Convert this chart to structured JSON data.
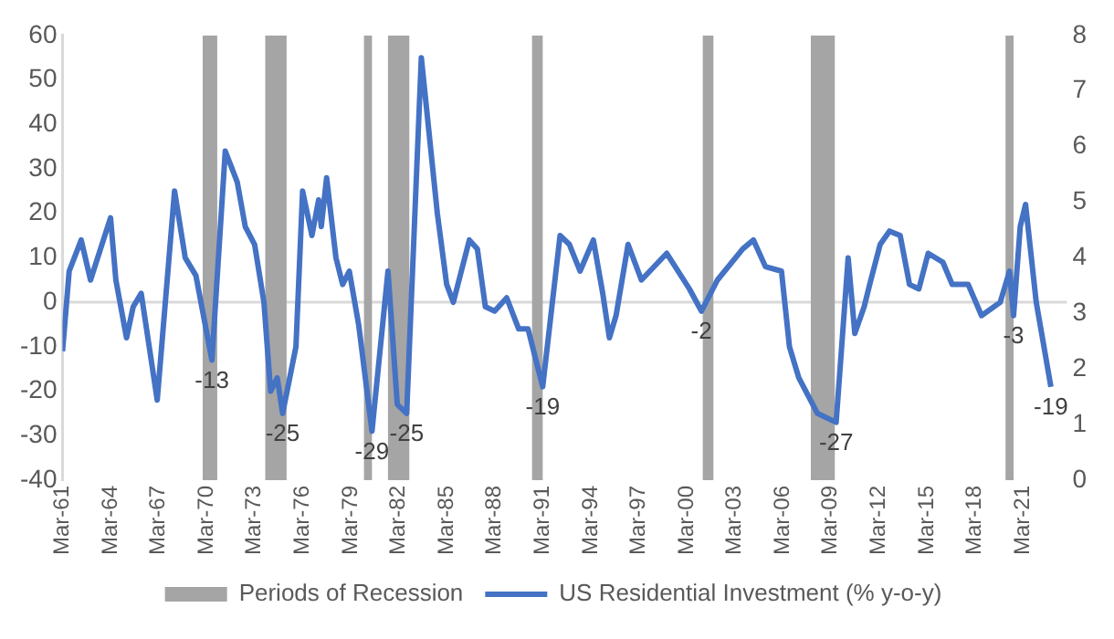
{
  "chart_data": {
    "type": "line",
    "xlim": [
      "1961-03",
      "2023-12"
    ],
    "xticks": [
      {
        "value": "1961-03",
        "label": "Mar-61"
      },
      {
        "value": "1964-03",
        "label": "Mar-64"
      },
      {
        "value": "1967-03",
        "label": "Mar-67"
      },
      {
        "value": "1970-03",
        "label": "Mar-70"
      },
      {
        "value": "1973-03",
        "label": "Mar-73"
      },
      {
        "value": "1976-03",
        "label": "Mar-76"
      },
      {
        "value": "1979-03",
        "label": "Mar-79"
      },
      {
        "value": "1982-03",
        "label": "Mar-82"
      },
      {
        "value": "1985-03",
        "label": "Mar-85"
      },
      {
        "value": "1988-03",
        "label": "Mar-88"
      },
      {
        "value": "1991-03",
        "label": "Mar-91"
      },
      {
        "value": "1994-03",
        "label": "Mar-94"
      },
      {
        "value": "1997-03",
        "label": "Mar-97"
      },
      {
        "value": "2000-03",
        "label": "Mar-00"
      },
      {
        "value": "2003-03",
        "label": "Mar-03"
      },
      {
        "value": "2006-03",
        "label": "Mar-06"
      },
      {
        "value": "2009-03",
        "label": "Mar-09"
      },
      {
        "value": "2012-03",
        "label": "Mar-12"
      },
      {
        "value": "2015-03",
        "label": "Mar-15"
      },
      {
        "value": "2018-03",
        "label": "Mar-18"
      },
      {
        "value": "2021-03",
        "label": "Mar-21"
      }
    ],
    "ylim": [
      -40,
      60
    ],
    "yticks": [
      -40,
      -30,
      -20,
      -10,
      0,
      10,
      20,
      30,
      40,
      50,
      60
    ],
    "y2lim": [
      0,
      8
    ],
    "y2ticks": [
      0,
      1,
      2,
      3,
      4,
      5,
      6,
      7,
      8
    ],
    "legend": "bottom",
    "ref_lines": [
      {
        "axis": "y",
        "value": 0,
        "color": "#d9d9d9"
      }
    ],
    "series": [
      {
        "name": "Periods of Recession",
        "type": "area",
        "axis": "y2",
        "color": "#a5a5a5",
        "x": [
          "1969-12",
          "1969-12",
          "1970-11",
          "1970-11",
          "1973-11",
          "1973-11",
          "1975-03",
          "1975-03",
          "1980-01",
          "1980-01",
          "1980-07",
          "1980-07",
          "1981-07",
          "1981-07",
          "1982-11",
          "1982-11",
          "1990-07",
          "1990-07",
          "1991-03",
          "1991-03",
          "2001-03",
          "2001-03",
          "2001-11",
          "2001-11",
          "2007-12",
          "2007-12",
          "2009-06",
          "2009-06",
          "2020-02",
          "2020-02",
          "2020-08",
          "2020-08"
        ],
        "values": [
          0,
          8,
          8,
          0,
          0,
          8,
          8,
          0,
          0,
          8,
          8,
          0,
          0,
          8,
          8,
          0,
          0,
          8,
          8,
          0,
          0,
          8,
          8,
          0,
          0,
          8,
          8,
          0,
          0,
          8,
          8,
          0
        ]
      },
      {
        "name": "US Residential Investment (% y-o-y)",
        "type": "line",
        "color": "#4472c4",
        "x": [
          "1961-03",
          "1961-08",
          "1962-05",
          "1962-12",
          "1964-03",
          "1964-07",
          "1965-03",
          "1965-08",
          "1966-02",
          "1966-07",
          "1967-02",
          "1968-03",
          "1968-11",
          "1969-07",
          "1970-07",
          "1971-05",
          "1972-02",
          "1972-08",
          "1973-03",
          "1973-10",
          "1974-03",
          "1974-08",
          "1974-12",
          "1975-10",
          "1976-03",
          "1976-10",
          "1977-03",
          "1977-05",
          "1977-09",
          "1978-04",
          "1978-09",
          "1979-02",
          "1979-09",
          "1980-07",
          "1981-07",
          "1982-02",
          "1982-09",
          "1983-08",
          "1984-08",
          "1985-03",
          "1985-08",
          "1986-08",
          "1987-02",
          "1987-08",
          "1988-03",
          "1988-12",
          "1989-09",
          "1990-04",
          "1991-03",
          "1992-04",
          "1992-11",
          "1993-07",
          "1994-05",
          "1994-12",
          "1995-05",
          "1995-10",
          "1996-07",
          "1997-05",
          "1998-12",
          "2000-05",
          "2001-02",
          "2002-02",
          "2003-09",
          "2004-05",
          "2005-02",
          "2006-02",
          "2006-08",
          "2007-03",
          "2008-05",
          "2009-07",
          "2010-04",
          "2010-09",
          "2011-04",
          "2011-09",
          "2012-04",
          "2012-11",
          "2013-07",
          "2014-02",
          "2014-09",
          "2015-04",
          "2016-03",
          "2016-10",
          "2017-10",
          "2018-08",
          "2019-10",
          "2020-05",
          "2020-08",
          "2021-01",
          "2021-05",
          "2022-01",
          "2022-12"
        ],
        "values": [
          -11,
          7,
          14,
          5,
          19,
          5,
          -8,
          -1,
          2,
          -8,
          -22,
          25,
          10,
          6,
          -13,
          34,
          27,
          17,
          13,
          0,
          -20,
          -17,
          -25,
          -10,
          25,
          15,
          23,
          17,
          28,
          10,
          4,
          7,
          -5,
          -29,
          7,
          -23,
          -25,
          55,
          20,
          4,
          0,
          14,
          12,
          -1,
          -2,
          1,
          -6,
          -6,
          -19,
          15,
          13,
          7,
          14,
          2,
          -8,
          -3,
          13,
          5,
          11,
          3,
          -2,
          5,
          12,
          14,
          8,
          7,
          -10,
          -17,
          -25,
          -27,
          10,
          -7,
          -1,
          5,
          13,
          16,
          15,
          4,
          3,
          11,
          9,
          4,
          4,
          -3,
          0,
          7,
          -3,
          17,
          22,
          0,
          -19
        ],
        "value_labels": [
          null,
          null,
          null,
          null,
          null,
          null,
          null,
          null,
          null,
          null,
          null,
          null,
          null,
          null,
          "-13",
          null,
          null,
          null,
          null,
          null,
          null,
          null,
          "-25",
          null,
          null,
          null,
          null,
          null,
          null,
          null,
          null,
          null,
          null,
          "-29",
          null,
          null,
          "-25",
          null,
          null,
          null,
          null,
          null,
          null,
          null,
          null,
          null,
          null,
          null,
          "-19",
          null,
          null,
          null,
          null,
          null,
          null,
          null,
          null,
          null,
          null,
          null,
          "-2",
          null,
          null,
          null,
          null,
          null,
          null,
          null,
          null,
          "-27",
          null,
          null,
          null,
          null,
          null,
          null,
          null,
          null,
          null,
          null,
          null,
          null,
          null,
          null,
          null,
          null,
          "-3",
          null,
          null,
          null,
          "-19"
        ]
      }
    ]
  }
}
